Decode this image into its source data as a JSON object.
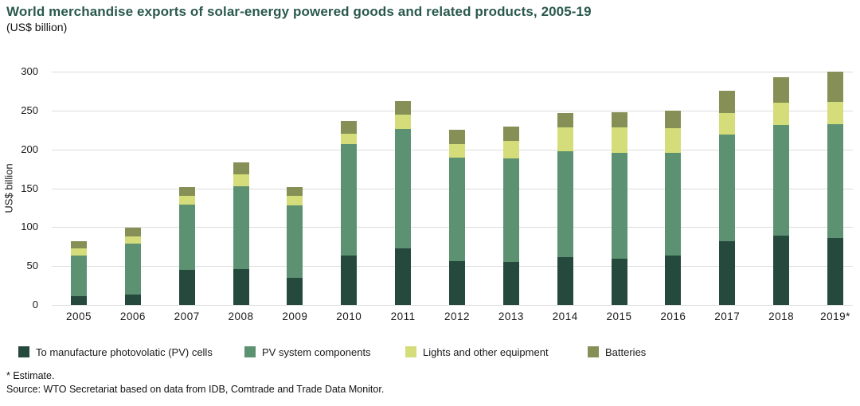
{
  "title": "World merchandise exports of solar-energy powered goods and related products, 2005-19",
  "subtitle": "(US$ billion)",
  "colors": {
    "title_text": "#2A594C",
    "body_text": "#1A1A1A",
    "gridline": "#DCDCDC",
    "series_cells": "#26493D",
    "series_components": "#5C9271",
    "series_lights": "#D4DD7A",
    "series_batteries": "#868F55"
  },
  "chart_data": {
    "type": "bar",
    "stacked": true,
    "title": "World merchandise exports of solar-energy powered goods and related products, 2005-19",
    "subtitle": "(US$ billion)",
    "xlabel": "",
    "ylabel": "US$ billion",
    "ylim": [
      0,
      300
    ],
    "yticks": [
      0,
      50,
      100,
      150,
      200,
      250,
      300
    ],
    "grid": true,
    "legend_position": "bottom",
    "categories": [
      "2005",
      "2006",
      "2007",
      "2008",
      "2009",
      "2010",
      "2011",
      "2012",
      "2013",
      "2014",
      "2015",
      "2016",
      "2017",
      "2018",
      "2019*"
    ],
    "series": [
      {
        "name": "To manufacture photovolatic (PV) cells",
        "color": "#26493D",
        "values": [
          11,
          13,
          45,
          46,
          35,
          63,
          73,
          56,
          55,
          61,
          59,
          64,
          82,
          89,
          86
        ]
      },
      {
        "name": "PV system components",
        "color": "#5C9271",
        "values": [
          53,
          66,
          84,
          107,
          93,
          144,
          153,
          133,
          133,
          137,
          137,
          132,
          137,
          142,
          146
        ]
      },
      {
        "name": "Lights and other equipment",
        "color": "#D4DD7A",
        "values": [
          9,
          9,
          11,
          15,
          12,
          13,
          19,
          18,
          23,
          30,
          32,
          31,
          28,
          29,
          29
        ]
      },
      {
        "name": "Batteries",
        "color": "#868F55",
        "values": [
          9,
          11,
          12,
          15,
          12,
          17,
          17,
          18,
          18,
          19,
          20,
          23,
          28,
          33,
          39
        ]
      }
    ],
    "totals": [
      82,
      99,
      152,
      183,
      152,
      237,
      262,
      225,
      229,
      247,
      248,
      250,
      275,
      293,
      300
    ]
  },
  "footnotes": {
    "estimate": "* Estimate.",
    "source": "Source: WTO Secretariat based on data from IDB, Comtrade and Trade Data Monitor."
  }
}
